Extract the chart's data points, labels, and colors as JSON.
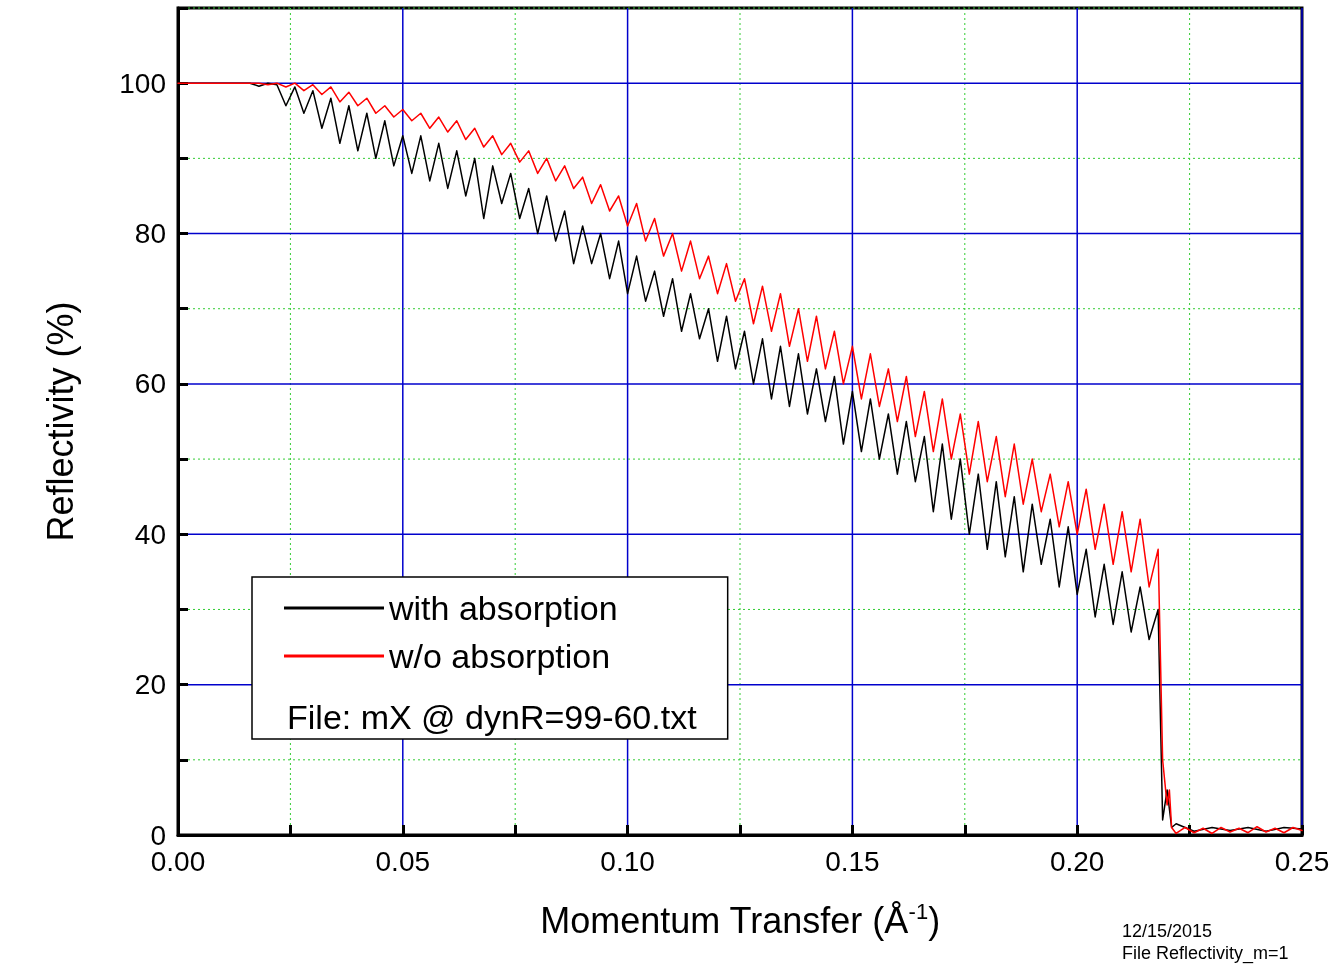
{
  "chart_data": {
    "type": "line",
    "xlabel": "Momentum Transfer (Å$^{-1}$)",
    "ylabel": "Reflectivity (%)",
    "xlim": [
      0,
      0.25
    ],
    "xticks": [
      {
        "value": 0,
        "label": "0.00"
      },
      {
        "value": 0.025,
        "label": null
      },
      {
        "value": 0.05,
        "label": "0.05"
      },
      {
        "value": 0.075,
        "label": null
      },
      {
        "value": 0.1,
        "label": "0.10"
      },
      {
        "value": 0.125,
        "label": null
      },
      {
        "value": 0.15,
        "label": "0.15"
      },
      {
        "value": 0.175,
        "label": null
      },
      {
        "value": 0.2,
        "label": "0.20"
      },
      {
        "value": 0.225,
        "label": null
      },
      {
        "value": 0.25,
        "label": "0.25"
      }
    ],
    "ylim": [
      0,
      110
    ],
    "yticks": [
      0,
      {
        "value": 10,
        "label": null
      },
      20,
      {
        "value": 30,
        "label": null
      },
      40,
      {
        "value": 50,
        "label": null
      },
      60,
      {
        "value": 70,
        "label": null
      },
      80,
      {
        "value": 90,
        "label": null
      },
      100,
      {
        "value": 110,
        "label": null
      }
    ],
    "grid": true,
    "legend": "bottom left",
    "marker": "none",
    "line_style": "solid",
    "annotations": [
      "File: mX @ dynR=99-60.txt",
      "12/15/2015",
      "File Reflectivity_m=1"
    ],
    "series": [
      {
        "name": "with absorption",
        "color": "#000000",
        "x": [
          0,
          0.004,
          0.008,
          0.012,
          0.016,
          0.018,
          0.02,
          0.022,
          0.024,
          0.026,
          0.028,
          0.03,
          0.032,
          0.034,
          0.036,
          0.038,
          0.04,
          0.042,
          0.044,
          0.046,
          0.048,
          0.05,
          0.052,
          0.054,
          0.056,
          0.058,
          0.06,
          0.062,
          0.064,
          0.066,
          0.068,
          0.07,
          0.072,
          0.074,
          0.076,
          0.078,
          0.08,
          0.082,
          0.084,
          0.086,
          0.088,
          0.09,
          0.092,
          0.094,
          0.096,
          0.098,
          0.1,
          0.102,
          0.104,
          0.106,
          0.108,
          0.11,
          0.112,
          0.114,
          0.116,
          0.118,
          0.12,
          0.122,
          0.124,
          0.126,
          0.128,
          0.13,
          0.132,
          0.134,
          0.136,
          0.138,
          0.14,
          0.142,
          0.144,
          0.146,
          0.148,
          0.15,
          0.152,
          0.154,
          0.156,
          0.158,
          0.16,
          0.162,
          0.164,
          0.166,
          0.168,
          0.17,
          0.172,
          0.174,
          0.176,
          0.178,
          0.18,
          0.182,
          0.184,
          0.186,
          0.188,
          0.19,
          0.192,
          0.194,
          0.196,
          0.198,
          0.2,
          0.202,
          0.204,
          0.206,
          0.208,
          0.21,
          0.212,
          0.214,
          0.216,
          0.218,
          0.219,
          0.22,
          0.221,
          0.222,
          0.226,
          0.23,
          0.234,
          0.238,
          0.242,
          0.246,
          0.25
        ],
        "values": [
          100,
          100,
          100,
          100,
          100,
          99.6,
          100,
          99.8,
          97,
          99.5,
          96,
          99,
          94,
          98,
          92,
          97,
          91,
          96,
          90,
          95,
          89,
          93,
          88,
          93,
          87,
          92,
          86,
          91,
          85,
          90,
          82,
          89,
          84,
          88,
          82,
          86,
          80,
          85,
          79,
          83,
          76,
          81,
          76,
          80,
          74,
          79,
          72,
          77,
          71,
          75,
          69,
          74,
          67,
          72,
          66,
          70,
          63,
          69,
          62,
          67,
          60,
          66,
          58,
          65,
          57,
          64,
          56,
          62,
          55,
          61,
          52,
          59,
          51,
          58,
          50,
          56,
          48,
          55,
          47,
          53,
          43,
          52,
          42,
          50,
          40,
          48,
          38,
          47,
          37,
          45,
          35,
          44,
          36,
          42,
          33,
          41,
          32,
          38,
          29,
          36,
          28,
          35,
          27,
          33,
          26,
          30,
          2,
          6,
          1,
          1.5,
          0.5,
          1,
          0.6,
          1,
          0.5,
          1,
          0.8
        ]
      },
      {
        "name": "w/o absorption",
        "color": "#ff0000",
        "x": [
          0,
          0.004,
          0.008,
          0.012,
          0.016,
          0.018,
          0.02,
          0.022,
          0.024,
          0.026,
          0.028,
          0.03,
          0.032,
          0.034,
          0.036,
          0.038,
          0.04,
          0.042,
          0.044,
          0.046,
          0.048,
          0.05,
          0.052,
          0.054,
          0.056,
          0.058,
          0.06,
          0.062,
          0.064,
          0.066,
          0.068,
          0.07,
          0.072,
          0.074,
          0.076,
          0.078,
          0.08,
          0.082,
          0.084,
          0.086,
          0.088,
          0.09,
          0.092,
          0.094,
          0.096,
          0.098,
          0.1,
          0.102,
          0.104,
          0.106,
          0.108,
          0.11,
          0.112,
          0.114,
          0.116,
          0.118,
          0.12,
          0.122,
          0.124,
          0.126,
          0.128,
          0.13,
          0.132,
          0.134,
          0.136,
          0.138,
          0.14,
          0.142,
          0.144,
          0.146,
          0.148,
          0.15,
          0.152,
          0.154,
          0.156,
          0.158,
          0.16,
          0.162,
          0.164,
          0.166,
          0.168,
          0.17,
          0.172,
          0.174,
          0.176,
          0.178,
          0.18,
          0.182,
          0.184,
          0.186,
          0.188,
          0.19,
          0.192,
          0.194,
          0.196,
          0.198,
          0.2,
          0.202,
          0.204,
          0.206,
          0.208,
          0.21,
          0.212,
          0.214,
          0.216,
          0.218,
          0.219,
          0.22,
          0.2205,
          0.221,
          0.222,
          0.224,
          0.226,
          0.228,
          0.23,
          0.232,
          0.234,
          0.236,
          0.238,
          0.24,
          0.242,
          0.244,
          0.246,
          0.248,
          0.25
        ],
        "values": [
          100,
          100,
          100,
          100,
          100,
          100,
          99.8,
          100,
          99.5,
          100,
          99,
          99.8,
          98.5,
          99.5,
          97.5,
          98.8,
          97,
          98,
          96,
          97,
          95.5,
          96.5,
          95,
          96,
          94,
          95.5,
          93.5,
          95,
          92.5,
          94,
          91.5,
          93,
          90.5,
          92,
          89.5,
          91,
          88,
          90,
          87,
          89,
          86,
          87.5,
          84,
          86.5,
          83,
          85,
          81,
          84,
          79,
          82,
          77,
          80,
          75,
          79,
          74,
          77,
          72,
          76,
          71,
          74,
          68,
          73,
          67,
          72,
          65,
          70,
          63,
          69,
          62,
          67,
          60,
          65,
          58,
          64,
          57,
          62,
          55,
          61,
          53,
          59,
          51,
          58,
          50,
          56,
          48,
          55,
          47,
          53,
          45,
          52,
          44,
          50,
          43,
          48,
          41,
          47,
          40,
          46,
          38,
          44,
          36,
          43,
          35,
          42,
          33,
          38,
          10,
          4,
          6,
          1,
          0.2,
          1,
          0.3,
          0.9,
          0.2,
          1,
          0.4,
          0.9,
          0.3,
          1.1,
          0.4,
          0.9,
          0.3,
          1,
          0.6
        ]
      }
    ]
  }
}
